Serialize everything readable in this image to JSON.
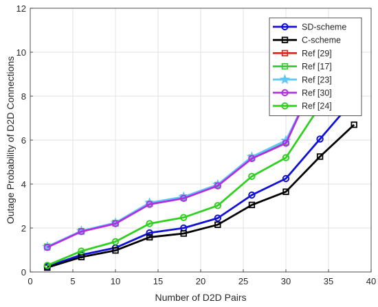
{
  "chart_data": {
    "type": "line",
    "xlabel": "Number of D2D Pairs",
    "ylabel": "Outage Probability of D2D Connections",
    "xlim": [
      0,
      40
    ],
    "ylim": [
      0,
      12
    ],
    "xticks": [
      "0",
      "5",
      "10",
      "15",
      "20",
      "25",
      "30",
      "35",
      "40"
    ],
    "yticks": [
      "0",
      "2",
      "4",
      "6",
      "8",
      "10",
      "12"
    ],
    "grid": true,
    "legend_position": "top-right",
    "series": [
      {
        "name": "SD-scheme",
        "color": "#1010d8",
        "marker": "circle",
        "x": [
          2,
          6,
          10,
          14,
          18,
          22,
          26,
          30,
          34,
          38
        ],
        "y": [
          0.25,
          0.78,
          1.1,
          1.78,
          2.0,
          2.45,
          3.5,
          4.25,
          6.05,
          7.85
        ]
      },
      {
        "name": "C-scheme",
        "color": "#000000",
        "marker": "square",
        "x": [
          2,
          6,
          10,
          14,
          18,
          22,
          26,
          30,
          34,
          38
        ],
        "y": [
          0.2,
          0.68,
          0.98,
          1.58,
          1.75,
          2.15,
          3.05,
          3.65,
          5.25,
          6.7
        ]
      },
      {
        "name": "Ref [29]",
        "color": "#d03020",
        "marker": "square",
        "x": [
          2,
          6,
          10,
          14,
          18,
          22,
          26,
          30,
          32.8
        ],
        "y": [
          1.15,
          1.85,
          2.22,
          3.1,
          3.38,
          3.95,
          5.2,
          5.9,
          8.2
        ]
      },
      {
        "name": "Ref [17]",
        "color": "#30d030",
        "marker": "square",
        "x": [
          2,
          6,
          10,
          14,
          18,
          22,
          26,
          30,
          32.8
        ],
        "y": [
          1.15,
          1.85,
          2.22,
          3.1,
          3.38,
          3.95,
          5.2,
          5.9,
          8.2
        ]
      },
      {
        "name": "Ref [23]",
        "color": "#60c8f8",
        "marker": "star",
        "x": [
          2,
          6,
          10,
          14,
          18,
          22,
          26,
          30,
          32.8
        ],
        "y": [
          1.15,
          1.87,
          2.24,
          3.15,
          3.42,
          3.98,
          5.24,
          5.98,
          8.2
        ]
      },
      {
        "name": "Ref [30]",
        "color": "#b030e0",
        "marker": "circle",
        "x": [
          2,
          6,
          10,
          14,
          18,
          22,
          26,
          30,
          32.8
        ],
        "y": [
          1.12,
          1.84,
          2.2,
          3.08,
          3.35,
          3.92,
          5.16,
          5.86,
          8.2
        ]
      },
      {
        "name": "Ref [24]",
        "color": "#30d020",
        "marker": "circle",
        "x": [
          2,
          6,
          10,
          14,
          18,
          22,
          26,
          30,
          34,
          35.3
        ],
        "y": [
          0.3,
          0.95,
          1.38,
          2.2,
          2.48,
          3.02,
          4.35,
          5.2,
          7.55,
          8.2
        ]
      }
    ]
  }
}
